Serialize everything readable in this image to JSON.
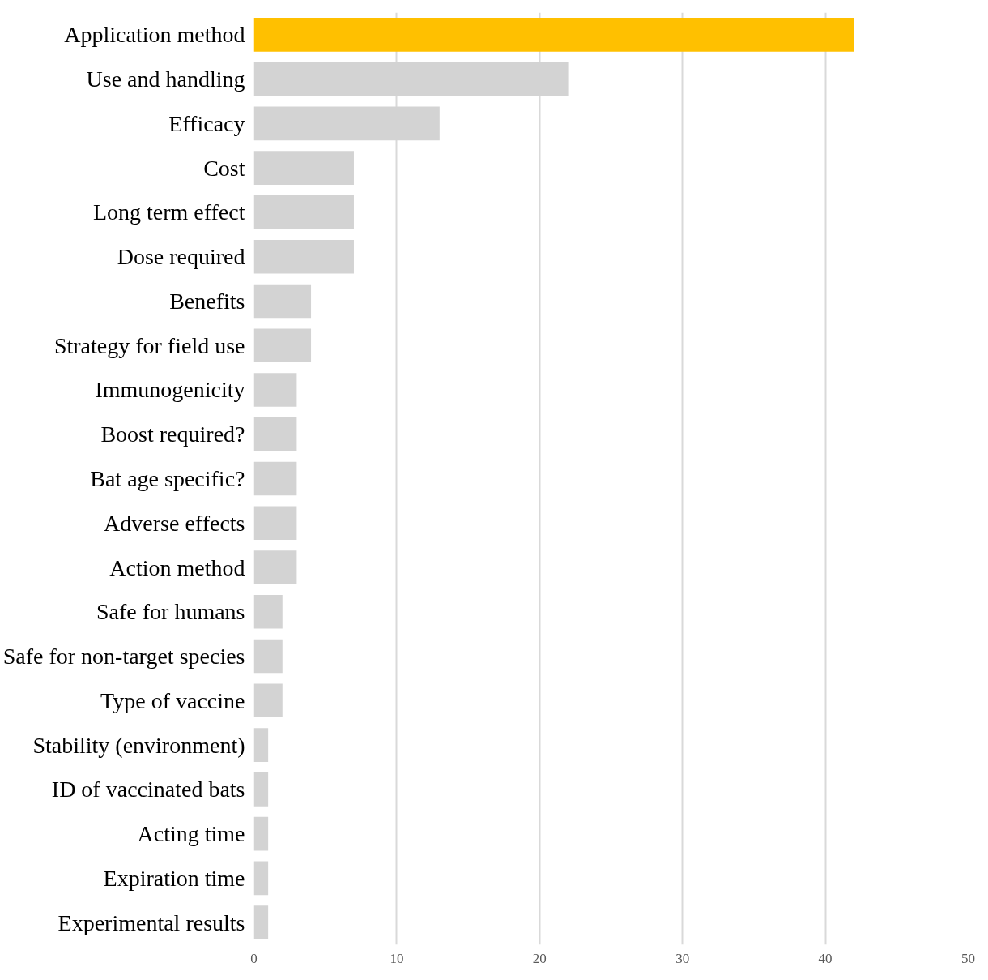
{
  "chart_data": {
    "type": "bar",
    "orientation": "horizontal",
    "categories": [
      "Application method",
      "Use and handling",
      "Efficacy",
      "Cost",
      "Long term effect",
      "Dose required",
      "Benefits",
      "Strategy for field use",
      "Immunogenicity",
      "Boost required?",
      "Bat age specific?",
      "Adverse effects",
      "Action method",
      "Safe for humans",
      "Safe for non-target species",
      "Type of vaccine",
      "Stability (environment)",
      "ID of vaccinated bats",
      "Acting time",
      "Expiration time",
      "Experimental results"
    ],
    "values": [
      42,
      22,
      13,
      7,
      7,
      7,
      4,
      4,
      3,
      3,
      3,
      3,
      3,
      2,
      2,
      2,
      1,
      1,
      1,
      1,
      1
    ],
    "colors": [
      "#ffc000",
      "#d3d3d3",
      "#d3d3d3",
      "#d3d3d3",
      "#d3d3d3",
      "#d3d3d3",
      "#d3d3d3",
      "#d3d3d3",
      "#d3d3d3",
      "#d3d3d3",
      "#d3d3d3",
      "#d3d3d3",
      "#d3d3d3",
      "#d3d3d3",
      "#d3d3d3",
      "#d3d3d3",
      "#d3d3d3",
      "#d3d3d3",
      "#d3d3d3",
      "#d3d3d3",
      "#d3d3d3"
    ],
    "xlim": [
      0,
      50
    ],
    "xticks": [
      0,
      10,
      20,
      30,
      40,
      50
    ],
    "grid": "x"
  }
}
